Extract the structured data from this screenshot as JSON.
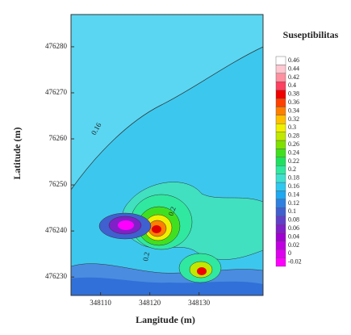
{
  "chart_data": {
    "type": "contour",
    "xlabel": "Langitude (m)",
    "ylabel": "Latitude (m)",
    "xlim": [
      348104,
      348143
    ],
    "ylim": [
      476226,
      476287
    ],
    "xticks": [
      348110,
      348120,
      348130
    ],
    "yticks": [
      476280,
      476270,
      {
        "value": 476260,
        "label": "76260"
      },
      {
        "value": 476250,
        "label": "76250"
      },
      476240,
      476230
    ],
    "annotations": [
      "0.16",
      "0.2",
      "0.2"
    ],
    "colorbar": {
      "title": "Suseptibilitas",
      "ticks": [
        -0.02,
        0,
        0.02,
        0.04,
        0.06,
        0.08,
        0.1,
        0.12,
        0.14,
        0.16,
        0.18,
        0.2,
        0.22,
        0.24,
        0.26,
        0.28,
        0.3,
        0.32,
        0.34,
        0.36,
        0.38,
        0.4,
        0.42,
        0.44,
        0.46
      ],
      "colors": [
        "#ff00ff",
        "#e000f0",
        "#c000e0",
        "#a000d0",
        "#8020c8",
        "#6040c8",
        "#4060d0",
        "#3080e0",
        "#20a8f0",
        "#30c8f0",
        "#40e0d0",
        "#30e8a0",
        "#20e060",
        "#40e020",
        "#80e000",
        "#c0e800",
        "#f0f000",
        "#ffc000",
        "#ff8000",
        "#ff4000",
        "#f00000",
        "#ff4060",
        "#ff90a0",
        "#ffc8d0",
        "#ffffff"
      ]
    }
  }
}
